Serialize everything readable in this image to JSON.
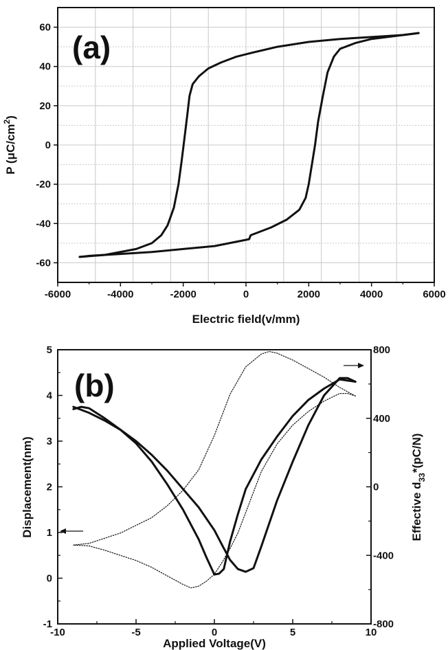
{
  "chart_data": [
    {
      "type": "line",
      "panel_label": "(a)",
      "xlabel": "Electric field(v/mm)",
      "ylabel_main": "P (",
      "ylabel_unit": "μC/cm",
      "ylabel_sup": "2",
      "ylabel_close": ")",
      "xlim": [
        -6000,
        6000
      ],
      "ylim": [
        -70,
        70
      ],
      "x_ticks": [
        -6000,
        -4000,
        -2000,
        0,
        2000,
        4000,
        6000
      ],
      "x_tick_labels": [
        "-6000",
        "-4000",
        "-2000",
        "0",
        "2000",
        "4000",
        "6000"
      ],
      "y_ticks": [
        -60,
        -40,
        -20,
        0,
        20,
        40,
        60
      ],
      "y_tick_labels": [
        "-60",
        "-40",
        "-20",
        "0",
        "20",
        "40",
        "60"
      ],
      "grid": true,
      "series": [
        {
          "style": "solid",
          "x": [
            -5300,
            -4500,
            -3500,
            -3000,
            -2700,
            -2500,
            -2300,
            -2150,
            -2050,
            -1950,
            -1850,
            -1800,
            -1750,
            -1700,
            -1500,
            -1200,
            -800,
            -300,
            200,
            1000,
            2000,
            3000,
            4000,
            5000,
            5500
          ],
          "y": [
            -57,
            -56,
            -53,
            -50,
            -46,
            -41,
            -32,
            -20,
            -8,
            5,
            18,
            25,
            28,
            31,
            35,
            39,
            42,
            45,
            47,
            50,
            52.5,
            54,
            55,
            56,
            57
          ]
        },
        {
          "style": "solid",
          "x": [
            5500,
            5000,
            4000,
            3500,
            3000,
            2800,
            2600,
            2450,
            2300,
            2200,
            2100,
            2000,
            1900,
            1800,
            1700,
            1300,
            800,
            150,
            100,
            -1000,
            -2000,
            -3000,
            -4000,
            -5000,
            -5300
          ],
          "y": [
            57,
            56,
            54,
            52,
            49,
            45,
            37,
            25,
            12,
            0,
            -10,
            -20,
            -27,
            -30,
            -33,
            -38,
            -42,
            -46,
            -48,
            -51.5,
            -53,
            -54.5,
            -55.5,
            -56.5,
            -57
          ]
        }
      ]
    },
    {
      "type": "line",
      "panel_label": "(b)",
      "xlabel": "Applied Voltage(V)",
      "ylabel_left": "Displacement(nm)",
      "ylabel_right_main": "Effective d",
      "ylabel_right_sub": "33",
      "ylabel_right_rest": "*(pC/N)",
      "xlim": [
        -10,
        10
      ],
      "ylim_left": [
        -1,
        5
      ],
      "ylim_right": [
        -800,
        800
      ],
      "x_ticks": [
        -10,
        -5,
        0,
        5,
        10
      ],
      "x_tick_labels": [
        "-10",
        "-5",
        "0",
        "5",
        "10"
      ],
      "y_left_ticks": [
        -1,
        0,
        1,
        2,
        3,
        4,
        5
      ],
      "y_left_tick_labels": [
        "-1",
        "0",
        "1",
        "2",
        "3",
        "4",
        "5"
      ],
      "y_right_ticks": [
        -800,
        -400,
        0,
        400,
        800
      ],
      "y_right_tick_labels": [
        "-800",
        "-400",
        "0",
        "400",
        "800"
      ],
      "grid": false,
      "series": [
        {
          "style": "thick",
          "axis": "left",
          "x": [
            -9,
            -8.5,
            -8,
            -7,
            -6,
            -5,
            -4,
            -3,
            -2,
            -1,
            -0.5,
            0,
            0.3,
            0.6,
            1,
            1.5,
            2,
            3,
            4,
            5,
            6,
            7,
            8,
            9
          ],
          "y": [
            3.7,
            3.75,
            3.72,
            3.5,
            3.25,
            2.95,
            2.55,
            2.05,
            1.5,
            0.85,
            0.45,
            0.08,
            0.1,
            0.2,
            0.8,
            1.4,
            1.95,
            2.6,
            3.1,
            3.55,
            3.9,
            4.15,
            4.35,
            4.3
          ]
        },
        {
          "style": "thick",
          "axis": "left",
          "x": [
            9,
            8.5,
            8,
            7,
            6,
            5,
            4,
            3,
            2.5,
            2,
            1.5,
            1,
            0.5,
            0,
            -1,
            -2,
            -3,
            -4,
            -5,
            -6,
            -7,
            -8,
            -9
          ],
          "y": [
            4.3,
            4.38,
            4.38,
            4.0,
            3.35,
            2.55,
            1.7,
            0.7,
            0.22,
            0.14,
            0.2,
            0.4,
            0.72,
            1.05,
            1.55,
            1.95,
            2.35,
            2.7,
            3.0,
            3.25,
            3.45,
            3.62,
            3.75
          ]
        },
        {
          "style": "dotted",
          "axis": "right",
          "x": [
            -9,
            -8,
            -6,
            -4,
            -3,
            -2,
            -1,
            0,
            0.5,
            1,
            1.5,
            2,
            3,
            3.5,
            4,
            5,
            6,
            7,
            8,
            9
          ],
          "y": [
            -340,
            -330,
            -270,
            -180,
            -110,
            -20,
            100,
            300,
            420,
            540,
            620,
            700,
            775,
            790,
            780,
            740,
            690,
            640,
            580,
            530
          ]
        },
        {
          "style": "dotted",
          "axis": "right",
          "x": [
            9,
            8.5,
            8,
            7,
            6,
            5,
            4,
            3,
            2,
            1.5,
            1,
            0.5,
            0,
            -0.5,
            -1,
            -1.5,
            -2,
            -3,
            -4,
            -5,
            -6,
            -7,
            -8,
            -9
          ],
          "y": [
            530,
            545,
            545,
            500,
            440,
            360,
            250,
            90,
            -150,
            -270,
            -360,
            -440,
            -510,
            -550,
            -580,
            -590,
            -570,
            -520,
            -470,
            -430,
            -400,
            -370,
            -345,
            -340
          ]
        }
      ]
    }
  ]
}
